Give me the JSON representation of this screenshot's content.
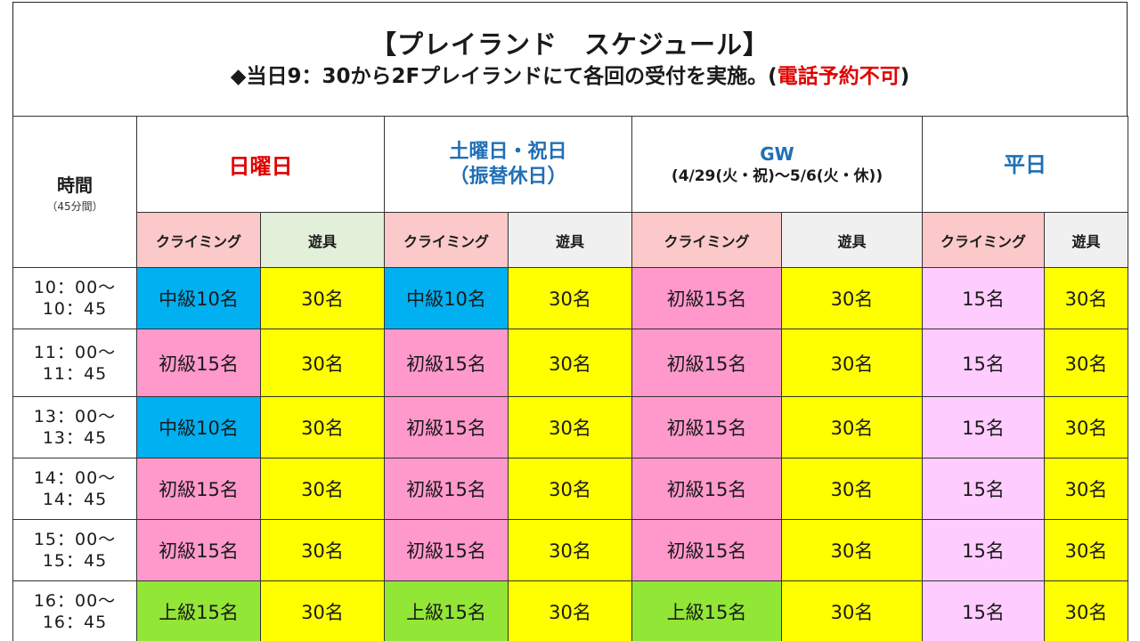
{
  "header": {
    "title": "【プレイランド　スケジュール】",
    "subtitle_main": "◆当日9：30から2Fプレイランドにて各回の受付を実施。(",
    "subtitle_warn": "電話予約不可",
    "subtitle_end": ")"
  },
  "table": {
    "time_header": "時間",
    "time_note": "（45分間）",
    "days": {
      "sunday": "日曜日",
      "saturday_line1": "土曜日・祝日",
      "saturday_line2": "（振替休日）",
      "gw_title": "GW",
      "gw_sub": "(4/29(火・祝)～5/6(火・休))",
      "weekday": "平日"
    },
    "sub": {
      "climbing": "クライミング",
      "play": "遊具"
    },
    "slots": [
      {
        "start": "10：00～",
        "end": "10：45",
        "cells": [
          "中級10名",
          "30名",
          "中級10名",
          "30名",
          "初級15名",
          "30名",
          "15名",
          "30名"
        ]
      },
      {
        "start": "11：00～",
        "end": "11：45",
        "cells": [
          "初級15名",
          "30名",
          "初級15名",
          "30名",
          "初級15名",
          "30名",
          "15名",
          "30名"
        ]
      },
      {
        "start": "13：00～",
        "end": "13：45",
        "cells": [
          "中級10名",
          "30名",
          "初級15名",
          "30名",
          "初級15名",
          "30名",
          "15名",
          "30名"
        ]
      },
      {
        "start": "14：00～",
        "end": "14：45",
        "cells": [
          "初級15名",
          "30名",
          "初級15名",
          "30名",
          "初級15名",
          "30名",
          "15名",
          "30名"
        ]
      },
      {
        "start": "15：00～",
        "end": "15：45",
        "cells": [
          "初級15名",
          "30名",
          "初級15名",
          "30名",
          "初級15名",
          "30名",
          "15名",
          "30名"
        ]
      },
      {
        "start": "16：00～",
        "end": "16：45",
        "cells": [
          "上級15名",
          "30名",
          "上級15名",
          "30名",
          "上級15名",
          "30名",
          "15名",
          "30名"
        ]
      }
    ]
  },
  "colors": {
    "intermediate": "#00b0f0",
    "beginner": "#ff99cc",
    "advanced": "#92e636",
    "weekday": "#ffccff",
    "play": "#ffff00",
    "warning_red": "#e00000",
    "day_blue": "#1f6fb5"
  }
}
